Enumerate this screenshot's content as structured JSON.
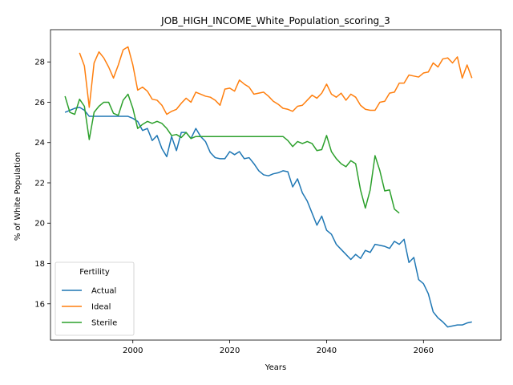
{
  "chart_data": {
    "type": "line",
    "title": "JOB_HIGH_INCOME_White_Population_scoring_3",
    "xlabel": "Years",
    "ylabel": "% of White Population",
    "xlim": [
      1983,
      2076
    ],
    "ylim": [
      14.2,
      29.6
    ],
    "xticks": [
      2000,
      2020,
      2040,
      2060
    ],
    "yticks": [
      16,
      18,
      20,
      22,
      24,
      26,
      28
    ],
    "grid": false,
    "legend": {
      "title": "Fertility",
      "position": "lower-left"
    },
    "series": [
      {
        "name": "Actual",
        "color": "#1f77b4",
        "points": [
          [
            1986,
            25.5
          ],
          [
            1987,
            25.6
          ],
          [
            1988,
            25.7
          ],
          [
            1989,
            25.75
          ],
          [
            1990,
            25.6
          ],
          [
            1991,
            25.3
          ],
          [
            1992,
            25.3
          ],
          [
            1993,
            25.3
          ],
          [
            1994,
            25.3
          ],
          [
            1995,
            25.3
          ],
          [
            1996,
            25.3
          ],
          [
            1997,
            25.3
          ],
          [
            1998,
            25.3
          ],
          [
            1999,
            25.3
          ],
          [
            2000,
            25.2
          ],
          [
            2001,
            25.05
          ],
          [
            2002,
            24.6
          ],
          [
            2003,
            24.7
          ],
          [
            2004,
            24.1
          ],
          [
            2005,
            24.35
          ],
          [
            2006,
            23.7
          ],
          [
            2007,
            23.3
          ],
          [
            2008,
            24.3
          ],
          [
            2009,
            23.6
          ],
          [
            2010,
            24.5
          ],
          [
            2011,
            24.5
          ],
          [
            2012,
            24.2
          ],
          [
            2013,
            24.7
          ],
          [
            2014,
            24.3
          ],
          [
            2015,
            24.05
          ],
          [
            2016,
            23.5
          ],
          [
            2017,
            23.25
          ],
          [
            2018,
            23.2
          ],
          [
            2019,
            23.2
          ],
          [
            2020,
            23.55
          ],
          [
            2021,
            23.4
          ],
          [
            2022,
            23.55
          ],
          [
            2023,
            23.2
          ],
          [
            2024,
            23.25
          ],
          [
            2025,
            22.95
          ],
          [
            2026,
            22.6
          ],
          [
            2027,
            22.4
          ],
          [
            2028,
            22.35
          ],
          [
            2029,
            22.45
          ],
          [
            2030,
            22.5
          ],
          [
            2031,
            22.6
          ],
          [
            2032,
            22.55
          ],
          [
            2033,
            21.8
          ],
          [
            2034,
            22.2
          ],
          [
            2035,
            21.5
          ],
          [
            2036,
            21.1
          ],
          [
            2037,
            20.5
          ],
          [
            2038,
            19.9
          ],
          [
            2039,
            20.35
          ],
          [
            2040,
            19.65
          ],
          [
            2041,
            19.45
          ],
          [
            2042,
            18.95
          ],
          [
            2043,
            18.7
          ],
          [
            2044,
            18.45
          ],
          [
            2045,
            18.2
          ],
          [
            2046,
            18.45
          ],
          [
            2047,
            18.25
          ],
          [
            2048,
            18.65
          ],
          [
            2049,
            18.55
          ],
          [
            2050,
            18.95
          ],
          [
            2051,
            18.9
          ],
          [
            2052,
            18.85
          ],
          [
            2053,
            18.75
          ],
          [
            2054,
            19.1
          ],
          [
            2055,
            18.95
          ],
          [
            2056,
            19.2
          ],
          [
            2057,
            18.05
          ],
          [
            2058,
            18.3
          ],
          [
            2059,
            17.2
          ],
          [
            2060,
            17.0
          ],
          [
            2061,
            16.5
          ],
          [
            2062,
            15.6
          ],
          [
            2063,
            15.3
          ],
          [
            2064,
            15.1
          ],
          [
            2065,
            14.85
          ],
          [
            2066,
            14.9
          ],
          [
            2067,
            14.95
          ],
          [
            2068,
            14.95
          ],
          [
            2069,
            15.05
          ],
          [
            2070,
            15.1
          ]
        ]
      },
      {
        "name": "Ideal",
        "color": "#ff7f0e",
        "points": [
          [
            1989,
            28.45
          ],
          [
            1990,
            27.8
          ],
          [
            1991,
            25.75
          ],
          [
            1992,
            27.95
          ],
          [
            1993,
            28.5
          ],
          [
            1994,
            28.2
          ],
          [
            1995,
            27.75
          ],
          [
            1996,
            27.2
          ],
          [
            1997,
            27.85
          ],
          [
            1998,
            28.6
          ],
          [
            1999,
            28.75
          ],
          [
            2000,
            27.85
          ],
          [
            2001,
            26.6
          ],
          [
            2002,
            26.75
          ],
          [
            2003,
            26.55
          ],
          [
            2004,
            26.15
          ],
          [
            2005,
            26.1
          ],
          [
            2006,
            25.85
          ],
          [
            2007,
            25.4
          ],
          [
            2008,
            25.55
          ],
          [
            2009,
            25.65
          ],
          [
            2010,
            25.95
          ],
          [
            2011,
            26.2
          ],
          [
            2012,
            26.0
          ],
          [
            2013,
            26.5
          ],
          [
            2014,
            26.4
          ],
          [
            2015,
            26.3
          ],
          [
            2016,
            26.25
          ],
          [
            2017,
            26.1
          ],
          [
            2018,
            25.85
          ],
          [
            2019,
            26.65
          ],
          [
            2020,
            26.7
          ],
          [
            2021,
            26.55
          ],
          [
            2022,
            27.1
          ],
          [
            2023,
            26.9
          ],
          [
            2024,
            26.75
          ],
          [
            2025,
            26.4
          ],
          [
            2026,
            26.45
          ],
          [
            2027,
            26.5
          ],
          [
            2028,
            26.3
          ],
          [
            2029,
            26.05
          ],
          [
            2030,
            25.9
          ],
          [
            2031,
            25.7
          ],
          [
            2032,
            25.65
          ],
          [
            2033,
            25.55
          ],
          [
            2034,
            25.8
          ],
          [
            2035,
            25.85
          ],
          [
            2036,
            26.1
          ],
          [
            2037,
            26.35
          ],
          [
            2038,
            26.2
          ],
          [
            2039,
            26.45
          ],
          [
            2040,
            26.9
          ],
          [
            2041,
            26.4
          ],
          [
            2042,
            26.25
          ],
          [
            2043,
            26.45
          ],
          [
            2044,
            26.1
          ],
          [
            2045,
            26.4
          ],
          [
            2046,
            26.25
          ],
          [
            2047,
            25.85
          ],
          [
            2048,
            25.65
          ],
          [
            2049,
            25.6
          ],
          [
            2050,
            25.6
          ],
          [
            2051,
            26.0
          ],
          [
            2052,
            26.05
          ],
          [
            2053,
            26.45
          ],
          [
            2054,
            26.5
          ],
          [
            2055,
            26.95
          ],
          [
            2056,
            26.95
          ],
          [
            2057,
            27.35
          ],
          [
            2058,
            27.3
          ],
          [
            2059,
            27.25
          ],
          [
            2060,
            27.45
          ],
          [
            2061,
            27.5
          ],
          [
            2062,
            27.95
          ],
          [
            2063,
            27.75
          ],
          [
            2064,
            28.15
          ],
          [
            2065,
            28.2
          ],
          [
            2066,
            27.95
          ],
          [
            2067,
            28.25
          ],
          [
            2068,
            27.2
          ],
          [
            2069,
            27.85
          ],
          [
            2070,
            27.2
          ]
        ]
      },
      {
        "name": "Sterile",
        "color": "#2ca02c",
        "points": [
          [
            1986,
            26.3
          ],
          [
            1987,
            25.5
          ],
          [
            1988,
            25.4
          ],
          [
            1989,
            26.15
          ],
          [
            1990,
            25.8
          ],
          [
            1991,
            24.15
          ],
          [
            1992,
            25.5
          ],
          [
            1993,
            25.8
          ],
          [
            1994,
            26.0
          ],
          [
            1995,
            26.0
          ],
          [
            1996,
            25.45
          ],
          [
            1997,
            25.35
          ],
          [
            1998,
            26.1
          ],
          [
            1999,
            26.4
          ],
          [
            2000,
            25.7
          ],
          [
            2001,
            24.7
          ],
          [
            2002,
            24.9
          ],
          [
            2003,
            25.05
          ],
          [
            2004,
            24.95
          ],
          [
            2005,
            25.05
          ],
          [
            2006,
            24.95
          ],
          [
            2007,
            24.7
          ],
          [
            2008,
            24.35
          ],
          [
            2009,
            24.4
          ],
          [
            2010,
            24.25
          ],
          [
            2011,
            24.5
          ],
          [
            2012,
            24.2
          ],
          [
            2013,
            24.3
          ],
          [
            2014,
            24.3
          ],
          [
            2015,
            24.3
          ],
          [
            2016,
            24.3
          ],
          [
            2017,
            24.3
          ],
          [
            2018,
            24.3
          ],
          [
            2019,
            24.3
          ],
          [
            2020,
            24.3
          ],
          [
            2021,
            24.3
          ],
          [
            2022,
            24.3
          ],
          [
            2023,
            24.3
          ],
          [
            2024,
            24.3
          ],
          [
            2025,
            24.3
          ],
          [
            2026,
            24.3
          ],
          [
            2027,
            24.3
          ],
          [
            2028,
            24.3
          ],
          [
            2029,
            24.3
          ],
          [
            2030,
            24.3
          ],
          [
            2031,
            24.3
          ],
          [
            2032,
            24.1
          ],
          [
            2033,
            23.8
          ],
          [
            2034,
            24.05
          ],
          [
            2035,
            23.95
          ],
          [
            2036,
            24.05
          ],
          [
            2037,
            23.95
          ],
          [
            2038,
            23.6
          ],
          [
            2039,
            23.65
          ],
          [
            2040,
            24.35
          ],
          [
            2041,
            23.55
          ],
          [
            2042,
            23.2
          ],
          [
            2043,
            22.95
          ],
          [
            2044,
            22.8
          ],
          [
            2045,
            23.1
          ],
          [
            2046,
            22.95
          ],
          [
            2047,
            21.65
          ],
          [
            2048,
            20.75
          ],
          [
            2049,
            21.65
          ],
          [
            2050,
            23.35
          ],
          [
            2051,
            22.6
          ],
          [
            2052,
            21.6
          ],
          [
            2053,
            21.65
          ],
          [
            2054,
            20.7
          ],
          [
            2055,
            20.5
          ]
        ]
      }
    ]
  }
}
